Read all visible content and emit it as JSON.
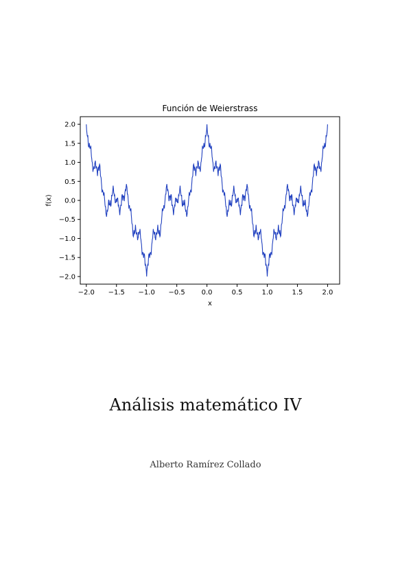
{
  "document": {
    "title": "Análisis matemático IV",
    "author": "Alberto Ramírez Collado"
  },
  "chart_data": {
    "type": "line",
    "title": "Función de Weierstrass",
    "xlabel": "x",
    "ylabel": "f(x)",
    "xlim": [
      -2.1,
      2.2
    ],
    "ylim": [
      -2.2,
      2.2
    ],
    "xticks": [
      -2.0,
      -1.5,
      -1.0,
      -0.5,
      0.0,
      0.5,
      1.0,
      1.5,
      2.0
    ],
    "xtick_labels": [
      "−2.0",
      "−1.5",
      "−1.0",
      "−0.5",
      "0.0",
      "0.5",
      "1.0",
      "1.5",
      "2.0"
    ],
    "yticks": [
      -2.0,
      -1.5,
      -1.0,
      -0.5,
      0.0,
      0.5,
      1.0,
      1.5,
      2.0
    ],
    "ytick_labels": [
      "−2.0",
      "−1.5",
      "−1.0",
      "−0.5",
      "0.0",
      "0.5",
      "1.0",
      "1.5",
      "2.0"
    ],
    "grid": false,
    "line_color": "#1f3fbf",
    "function": "sum_{n=0}^{9} 0.5^n * cos(3^n * pi * x)",
    "series": [
      {
        "x_range": [
          -2.0,
          2.0
        ],
        "samples": 800
      }
    ]
  }
}
